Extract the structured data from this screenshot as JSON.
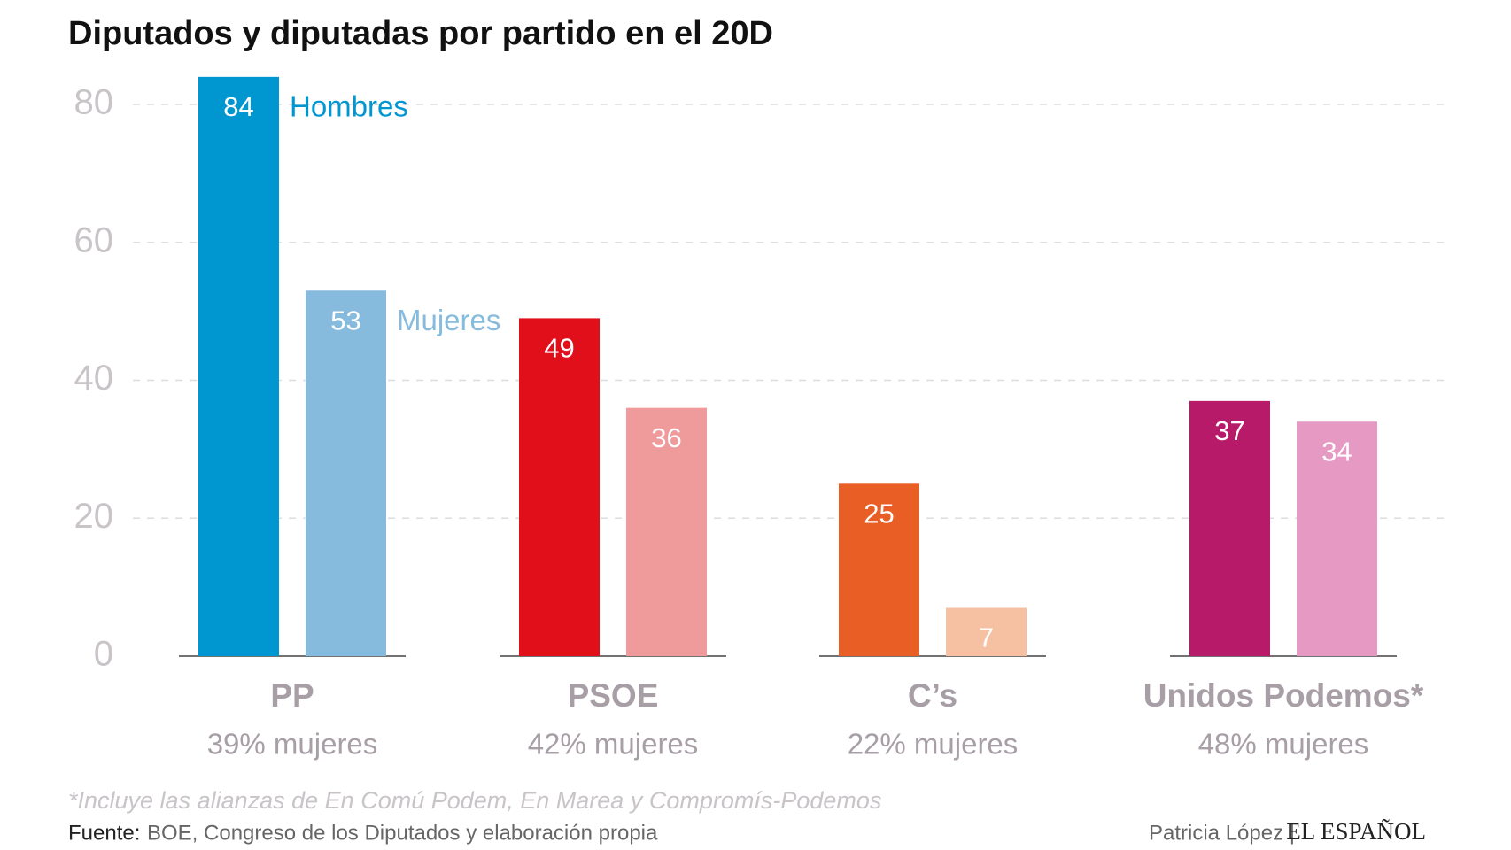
{
  "chart_data": {
    "type": "grouped-bar",
    "title": "Diputados y diputadas por partido en el 20D",
    "categories": [
      "PP",
      "PSOE",
      "C’s",
      "Unidos Podemos*"
    ],
    "category_notes": [
      "39% mujeres",
      "42% mujeres",
      "22% mujeres",
      "48% mujeres"
    ],
    "series": [
      {
        "name": "Hombres",
        "color": "#0096d0",
        "colors": [
          "#0096d0",
          "#e10f1a",
          "#e85e24",
          "#b81a6a"
        ],
        "values": [
          84,
          49,
          25,
          37
        ]
      },
      {
        "name": "Mujeres",
        "color": "#86bbdd",
        "colors": [
          "#86bbdd",
          "#f09b9b",
          "#f6c0a2",
          "#e69ac3"
        ],
        "values": [
          53,
          36,
          7,
          34
        ]
      }
    ],
    "ylim": [
      0,
      80
    ],
    "yticks": [
      0,
      20,
      40,
      60,
      80
    ],
    "grid": true,
    "footnote": "*Incluye las alianzas de En Comú Podem, En Marea y Compromís-Podemos",
    "source_label": "Fuente:",
    "source": "BOE, Congreso de los Diputados y elaboración propia",
    "author": "Patricia López |",
    "logo": "EL ESPAÑOL"
  }
}
